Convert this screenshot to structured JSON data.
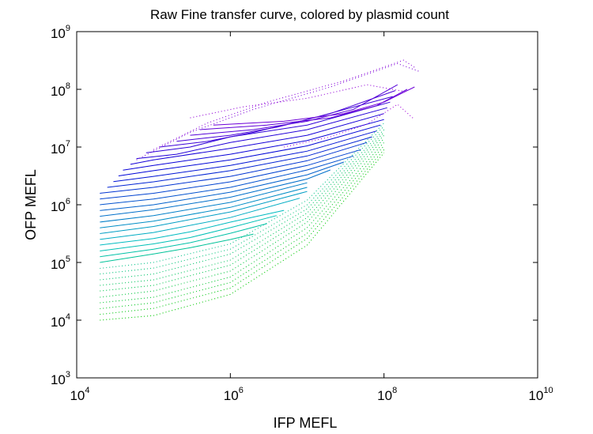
{
  "chart_data": {
    "type": "line",
    "title": "Raw Fine transfer curve, colored by plasmid count",
    "xlabel": "IFP MEFL",
    "ylabel": "OFP MEFL",
    "xscale": "log",
    "yscale": "log",
    "xlim": [
      10000,
      10000000000
    ],
    "ylim": [
      1000,
      1000000000
    ],
    "xticks": [
      {
        "base": "10",
        "exp": "4",
        "value": 10000
      },
      {
        "base": "10",
        "exp": "6",
        "value": 1000000
      },
      {
        "base": "10",
        "exp": "8",
        "value": 100000000
      },
      {
        "base": "10",
        "exp": "10",
        "value": 10000000000
      }
    ],
    "yticks": [
      {
        "base": "10",
        "exp": "3",
        "value": 1000
      },
      {
        "base": "10",
        "exp": "4",
        "value": 10000
      },
      {
        "base": "10",
        "exp": "5",
        "value": 100000
      },
      {
        "base": "10",
        "exp": "6",
        "value": 1000000
      },
      {
        "base": "10",
        "exp": "7",
        "value": 10000000
      },
      {
        "base": "10",
        "exp": "8",
        "value": 100000000
      },
      {
        "base": "10",
        "exp": "9",
        "value": 1000000000
      }
    ],
    "grid": false,
    "legend": "none",
    "color_scale": {
      "low_plasmid_count": "#00c800",
      "mid_plasmid_count": "#00c0c0",
      "high_plasmid_count": "#0000d8",
      "highest_plasmid_count": "#a000d8"
    },
    "series": [
      {
        "style": "dotted",
        "x": [
          20000,
          100000,
          1000000,
          10000000,
          100000000
        ],
        "y": [
          10000,
          12000,
          28000,
          200000,
          8000000
        ]
      },
      {
        "style": "dotted",
        "x": [
          20000,
          100000,
          1000000,
          10000000,
          100000000
        ],
        "y": [
          12600,
          16000,
          36000,
          260000,
          9000000
        ]
      },
      {
        "style": "dotted",
        "x": [
          20000,
          100000,
          1000000,
          10000000,
          100000000
        ],
        "y": [
          15800,
          20000,
          45000,
          320000,
          10500000
        ]
      },
      {
        "style": "dotted",
        "x": [
          20000,
          100000,
          1000000,
          10000000,
          100000000
        ],
        "y": [
          20000,
          25000,
          56000,
          400000,
          12000000
        ]
      },
      {
        "style": "dotted",
        "x": [
          20000,
          100000,
          1000000,
          10000000,
          100000000
        ],
        "y": [
          25000,
          32000,
          71000,
          500000,
          14000000
        ]
      },
      {
        "style": "dotted",
        "x": [
          20000,
          100000,
          1000000,
          10000000,
          100000000
        ],
        "y": [
          32000,
          40000,
          90000,
          600000,
          16000000
        ]
      },
      {
        "style": "dotted",
        "x": [
          20000,
          100000,
          1000000,
          10000000,
          100000000
        ],
        "y": [
          40000,
          50000,
          110000,
          720000,
          18000000
        ]
      },
      {
        "style": "dotted",
        "x": [
          20000,
          100000,
          1000000,
          10000000,
          100000000
        ],
        "y": [
          50000,
          63000,
          140000,
          850000,
          20000000
        ]
      },
      {
        "style": "dotted",
        "x": [
          20000,
          100000,
          1000000,
          10000000,
          100000000
        ],
        "y": [
          63000,
          80000,
          170000,
          1000000,
          23000000
        ]
      },
      {
        "style": "dotted",
        "x": [
          20000,
          100000,
          1000000,
          10000000,
          100000000
        ],
        "y": [
          79000,
          100000,
          210000,
          1200000,
          26000000
        ]
      },
      {
        "style": "solid",
        "x": [
          20000,
          100000,
          300000,
          1000000,
          2000000
        ],
        "y": [
          100000,
          140000,
          180000,
          250000,
          310000
        ]
      },
      {
        "style": "solid",
        "x": [
          20000,
          100000,
          300000,
          1000000,
          3000000
        ],
        "y": [
          126000,
          170000,
          220000,
          320000,
          470000
        ]
      },
      {
        "style": "solid",
        "x": [
          20000,
          100000,
          300000,
          1000000,
          4000000
        ],
        "y": [
          158000,
          210000,
          270000,
          400000,
          650000
        ]
      },
      {
        "style": "solid",
        "x": [
          20000,
          100000,
          300000,
          1000000,
          5000000
        ],
        "y": [
          200000,
          260000,
          340000,
          500000,
          800000
        ]
      },
      {
        "style": "solid",
        "x": [
          20000,
          100000,
          1000000,
          8000000
        ],
        "y": [
          251000,
          330000,
          600000,
          1300000
        ]
      },
      {
        "style": "solid",
        "x": [
          20000,
          100000,
          1000000,
          10000000
        ],
        "y": [
          316000,
          420000,
          750000,
          1700000
        ]
      },
      {
        "style": "solid",
        "x": [
          20000,
          100000,
          1000000,
          10000000
        ],
        "y": [
          398000,
          520000,
          900000,
          2000000
        ]
      },
      {
        "style": "solid",
        "x": [
          20000,
          100000,
          1000000,
          10000000
        ],
        "y": [
          501000,
          650000,
          1100000,
          2400000
        ]
      },
      {
        "style": "solid",
        "x": [
          20000,
          100000,
          1000000,
          10000000,
          20000000
        ],
        "y": [
          631000,
          820000,
          1350000,
          2800000,
          4000000
        ]
      },
      {
        "style": "solid",
        "x": [
          20000,
          100000,
          1000000,
          10000000,
          30000000
        ],
        "y": [
          794000,
          1000000,
          1650000,
          3300000,
          5500000
        ]
      },
      {
        "style": "solid",
        "x": [
          20000,
          100000,
          1000000,
          10000000,
          40000000
        ],
        "y": [
          1000000,
          1260000,
          2000000,
          4000000,
          7000000
        ]
      },
      {
        "style": "solid",
        "x": [
          20000,
          100000,
          1000000,
          10000000,
          50000000
        ],
        "y": [
          1260000,
          1580000,
          2500000,
          4800000,
          9000000
        ]
      },
      {
        "style": "solid",
        "x": [
          20000,
          100000,
          1000000,
          10000000,
          60000000
        ],
        "y": [
          1580000,
          2000000,
          3100000,
          5800000,
          12000000
        ]
      },
      {
        "style": "solid",
        "x": [
          25000,
          100000,
          1000000,
          10000000,
          70000000
        ],
        "y": [
          2000000,
          2500000,
          3900000,
          7000000,
          15000000
        ]
      },
      {
        "style": "solid",
        "x": [
          30000,
          100000,
          1000000,
          10000000,
          80000000
        ],
        "y": [
          2510000,
          3100000,
          4800000,
          8500000,
          19000000
        ]
      },
      {
        "style": "solid",
        "x": [
          35000,
          100000,
          1000000,
          10000000,
          90000000
        ],
        "y": [
          3160000,
          3900000,
          6000000,
          10500000,
          24000000
        ]
      },
      {
        "style": "solid",
        "x": [
          40000,
          100000,
          1000000,
          10000000,
          100000000
        ],
        "y": [
          3980000,
          4800000,
          7500000,
          13000000,
          30000000
        ]
      },
      {
        "style": "solid",
        "x": [
          50000,
          100000,
          1000000,
          10000000,
          100000000
        ],
        "y": [
          5010000,
          6000000,
          9500000,
          16000000,
          38000000
        ]
      },
      {
        "style": "solid",
        "x": [
          60000,
          200000,
          1000000,
          10000000,
          110000000
        ],
        "y": [
          6310000,
          7500000,
          12000000,
          20000000,
          48000000
        ]
      },
      {
        "style": "solid",
        "x": [
          80000,
          300000,
          1000000,
          10000000,
          120000000
        ],
        "y": [
          7940000,
          10000000,
          15000000,
          24000000,
          60000000
        ]
      },
      {
        "style": "solid",
        "x": [
          120000,
          500000,
          2000000,
          10000000,
          130000000
        ],
        "y": [
          10000000,
          12500000,
          18000000,
          30000000,
          75000000
        ]
      },
      {
        "style": "solid",
        "x": [
          200000,
          1000000,
          4000000,
          20000000,
          140000000
        ],
        "y": [
          12600000,
          16000000,
          22000000,
          38000000,
          95000000
        ]
      },
      {
        "style": "solid",
        "x": [
          300000,
          2000000,
          10000000,
          40000000,
          150000000
        ],
        "y": [
          16000000,
          20000000,
          28000000,
          45000000,
          120000000
        ]
      },
      {
        "style": "solid",
        "x": [
          400000,
          3000000,
          20000000,
          80000000,
          200000000
        ],
        "y": [
          20000000,
          24000000,
          32000000,
          52000000,
          100000000
        ]
      },
      {
        "style": "solid",
        "x": [
          600000,
          5000000,
          30000000,
          100000000,
          250000000
        ],
        "y": [
          24000000,
          28000000,
          38000000,
          60000000,
          110000000
        ]
      },
      {
        "style": "dotted",
        "x": [
          60000,
          300000,
          2000000,
          20000000,
          150000000,
          300000000
        ],
        "y": [
          6000000,
          18000000,
          45000000,
          110000000,
          280000000,
          200000000
        ]
      },
      {
        "style": "dotted",
        "x": [
          100000,
          500000,
          3000000,
          30000000,
          180000000,
          250000000
        ],
        "y": [
          9000000,
          26000000,
          60000000,
          140000000,
          320000000,
          240000000
        ]
      },
      {
        "style": "dotted",
        "x": [
          300000,
          1500000,
          10000000,
          60000000,
          200000000
        ],
        "y": [
          32000000,
          50000000,
          70000000,
          120000000,
          90000000
        ]
      },
      {
        "style": "dotted",
        "x": [
          5000000,
          20000000,
          60000000,
          150000000,
          250000000
        ],
        "y": [
          10000000,
          15000000,
          25000000,
          55000000,
          30000000
        ]
      }
    ]
  }
}
